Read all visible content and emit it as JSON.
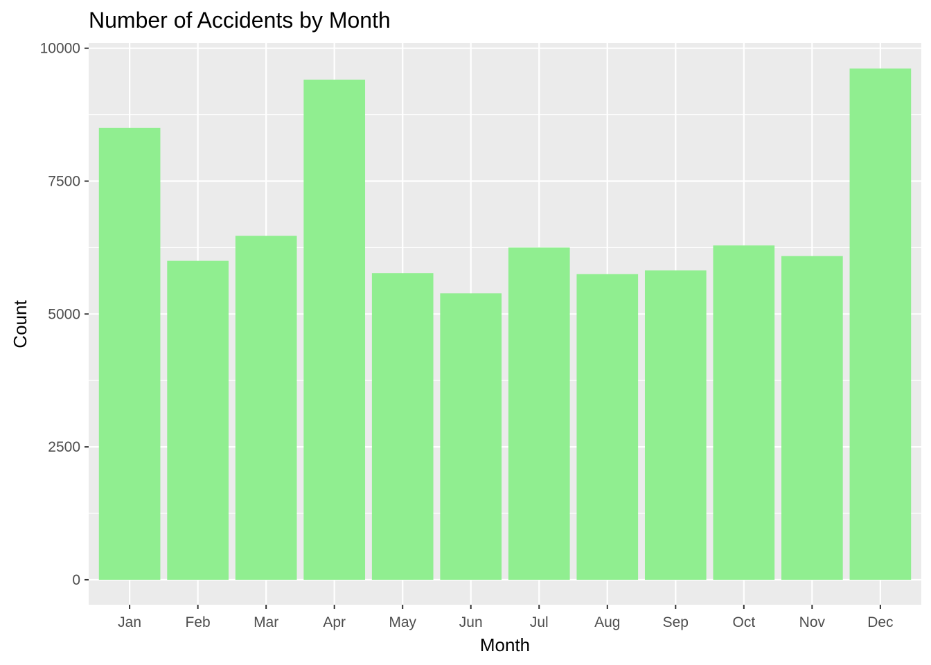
{
  "chart_data": {
    "type": "bar",
    "title": "Number of Accidents by Month",
    "xlabel": "Month",
    "ylabel": "Count",
    "categories": [
      "Jan",
      "Feb",
      "Mar",
      "Apr",
      "May",
      "Jun",
      "Jul",
      "Aug",
      "Sep",
      "Oct",
      "Nov",
      "Dec"
    ],
    "values": [
      8500,
      6000,
      6470,
      9410,
      5770,
      5390,
      6250,
      5750,
      5820,
      6290,
      6090,
      9620
    ],
    "ylim": [
      -470,
      10100
    ],
    "yticks": [
      0,
      2500,
      5000,
      7500,
      10000
    ],
    "ytick_labels": [
      "0",
      "2500",
      "5000",
      "7500",
      "10000"
    ],
    "grid": true,
    "colors": {
      "bar": "#90ee90",
      "panel_background": "#ebebeb",
      "grid": "#ffffff",
      "tick": "#333333"
    }
  }
}
